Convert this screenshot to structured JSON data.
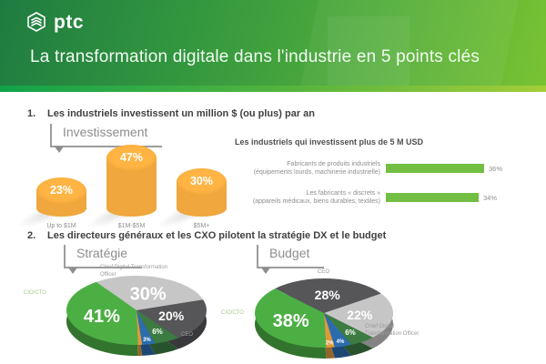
{
  "header": {
    "brand": "ptc",
    "title": "La transformation digitale dans l'industrie en 5 points clés"
  },
  "sections": [
    {
      "number": "1.",
      "title": "Les industriels investissent un million $ (ou plus) par an"
    },
    {
      "number": "2.",
      "title": "Les directeurs généraux et les CXO pilotent la stratégie DX et le budget"
    }
  ],
  "colors": {
    "header_green_dark": "#1f7c41",
    "header_green_light": "#79c232",
    "accent_lime": "#a4cd3a",
    "bar_green": "#72bf44",
    "cylinder_orange": "#efa73e",
    "pie_green": "#4caf44",
    "pie_dark_gray": "#565659",
    "pie_light_gray": "#c6c6c6",
    "pie_dark_green": "#3c7c42",
    "pie_blue": "#2c6cae",
    "pie_orange": "#dd9a3d",
    "text_dark": "#404040",
    "text_gray": "#8e8e8e"
  },
  "chart_data": [
    {
      "type": "bar",
      "variant": "cylinder",
      "title": "Investissement",
      "unit": "%",
      "categories": [
        "Up to $1M",
        "$1M-$5M",
        "$5M+"
      ],
      "values": [
        23,
        47,
        30
      ],
      "bar_color": "#efa73e",
      "ylim": [
        0,
        50
      ]
    },
    {
      "type": "bar",
      "orientation": "horizontal",
      "title": "Les industriels qui investissent plus de 5 M USD",
      "unit": "%",
      "bar_color": "#72bf44",
      "rows": [
        {
          "label": "Fabricants de produits industriels",
          "sublabel": "(équipements lourds, machinerie industrielle)",
          "value": 36
        },
        {
          "label": "Les fabricants « discrets »",
          "sublabel": "(appareils médicaux, biens durables, textiles)",
          "value": 34
        }
      ]
    },
    {
      "type": "pie",
      "title": "Stratégie",
      "unit": "%",
      "slices": [
        {
          "label": "Chief Digital Transformation Officer",
          "value": 30,
          "color": "#c6c6c6"
        },
        {
          "label": "CEO",
          "value": 20,
          "color": "#565659"
        },
        {
          "label": "",
          "value": 6,
          "color": "#3c7c42"
        },
        {
          "label": "",
          "value": 3,
          "color": "#2c6cae"
        },
        {
          "label": "",
          "value": 1,
          "color": "#dd9a3d",
          "show_label": false
        },
        {
          "label": "CIO/CTO",
          "value": 41,
          "color": "#4caf44"
        }
      ]
    },
    {
      "type": "pie",
      "title": "Budget",
      "unit": "%",
      "slices": [
        {
          "label": "CEO",
          "value": 28,
          "color": "#565659"
        },
        {
          "label": "Chief Digital Transformation Officer",
          "value": 22,
          "color": "#c6c6c6"
        },
        {
          "label": "",
          "value": 6,
          "color": "#3c7c42"
        },
        {
          "label": "",
          "value": 4,
          "color": "#2c6cae"
        },
        {
          "label": "",
          "value": 2,
          "color": "#dd9a3d"
        },
        {
          "label": "CIO/CTO",
          "value": 38,
          "color": "#4caf44"
        }
      ]
    }
  ]
}
